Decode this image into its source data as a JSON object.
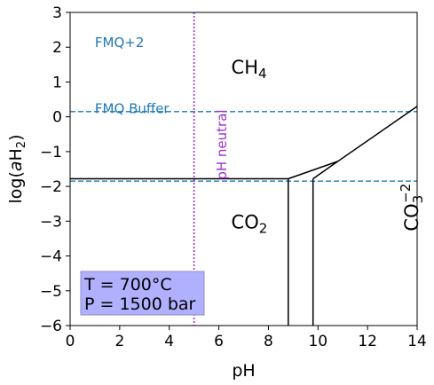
{
  "chart_data": {
    "type": "line",
    "xlabel": "pH",
    "ylabel_prefix": "log(",
    "ylabel_italic": "a",
    "ylabel_rest": "H",
    "ylabel_sub": "2",
    "ylabel_close": ")",
    "xlim": [
      0,
      14
    ],
    "ylim": [
      -6,
      3
    ],
    "xticks": [
      0,
      2,
      4,
      6,
      8,
      10,
      12,
      14
    ],
    "yticks": [
      -6,
      -5,
      -4,
      -3,
      -2,
      -1,
      0,
      1,
      2,
      3
    ],
    "grid": false,
    "boundaries": [
      {
        "name": "CH4-CO2",
        "x": [
          0,
          8.8
        ],
        "y": [
          -1.78,
          -1.78
        ]
      },
      {
        "name": "CH4-CO2-upper",
        "x": [
          8.8,
          10.8
        ],
        "y": [
          -1.78,
          -1.28
        ]
      },
      {
        "name": "CH4-CO3",
        "x": [
          10.8,
          14.0
        ],
        "y": [
          -1.28,
          0.3
        ]
      },
      {
        "name": "CO2-HCO3-upper",
        "x": [
          9.8,
          10.8
        ],
        "y": [
          -1.78,
          -1.28
        ]
      },
      {
        "name": "CO2-HCO3-vertical",
        "x": [
          8.8,
          8.8
        ],
        "y": [
          -1.78,
          -6
        ]
      },
      {
        "name": "HCO3-CO3-vertical",
        "x": [
          9.8,
          9.8
        ],
        "y": [
          -1.78,
          -6
        ]
      }
    ],
    "reference_lines": [
      {
        "label": "FMQ Buffer",
        "orientation": "horizontal",
        "value": 0.15,
        "color": "#1f77b4"
      },
      {
        "label": "",
        "orientation": "horizontal",
        "value": -1.85,
        "color": "#1f77b4"
      },
      {
        "label": "pH neutral",
        "orientation": "vertical",
        "value": 5.0,
        "color": "#9932cc"
      }
    ],
    "annotations": [
      {
        "text": "FMQ+2",
        "x": 1.0,
        "y": 2.0,
        "color": "#1f77b4"
      },
      {
        "text": "FMQ Buffer",
        "x": 1.0,
        "y": 0.1,
        "color": "#1f77b4"
      },
      {
        "text": "pH neutral",
        "x": 6.3,
        "y": -0.8,
        "color": "#9932cc",
        "rotate": -90
      }
    ],
    "regions": [
      {
        "base": "CH",
        "sub": "4",
        "sup": "",
        "x": 6.5,
        "y": 1.45
      },
      {
        "base": "CO",
        "sub": "2",
        "sup": "",
        "x": 6.5,
        "y": -3.0
      },
      {
        "base": "CO",
        "sub": "3",
        "sup": "−2",
        "x": 13.75,
        "y": -2.6,
        "rotate": -90
      }
    ],
    "info_box": {
      "lines": [
        "T = 700°C",
        "P = 1500 bar"
      ],
      "fill": "#b0b0ff"
    }
  }
}
